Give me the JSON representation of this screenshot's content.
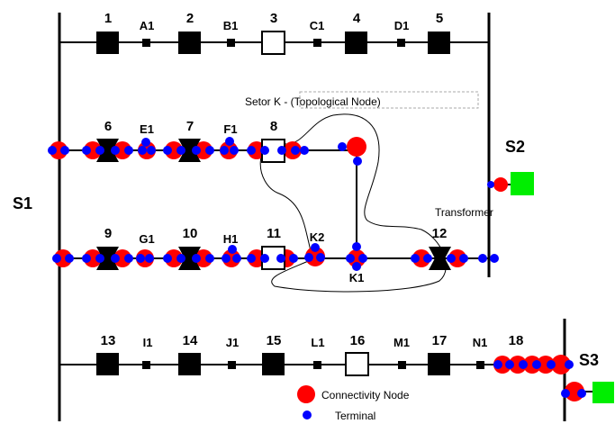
{
  "buses": {
    "s1": "S1",
    "s2": "S2",
    "s3": "S3"
  },
  "switch_labels": [
    "1",
    "2",
    "3",
    "4",
    "5",
    "6",
    "7",
    "8",
    "9",
    "10",
    "11",
    "12",
    "13",
    "14",
    "15",
    "16",
    "17",
    "18"
  ],
  "node_labels": {
    "a1": "A1",
    "b1": "B1",
    "c1": "C1",
    "d1": "D1",
    "e1": "E1",
    "f1": "F1",
    "g1": "G1",
    "h1": "H1",
    "k1": "K1",
    "k2": "K2",
    "i1": "I1",
    "j1": "J1",
    "l1": "L1",
    "m1": "M1",
    "n1": "N1"
  },
  "sector_label": "Setor K - (Topological Node)",
  "transformer_label": "Transformer",
  "legend": {
    "connectivity_node": "Connectivity Node",
    "terminal": "Terminal"
  },
  "colors": {
    "connectivity_node": "#ff0000",
    "terminal": "#0000ff",
    "source": "#00ee00",
    "line": "#000000"
  }
}
